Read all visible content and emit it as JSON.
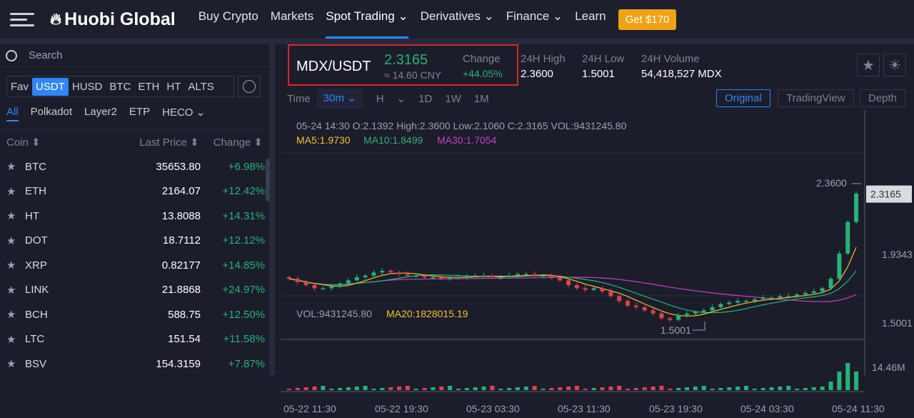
{
  "nav": {
    "logo": "Huobi Global",
    "items": [
      {
        "label": "Buy Crypto"
      },
      {
        "label": "Markets"
      },
      {
        "label": "Spot Trading ⌄",
        "active": true
      },
      {
        "label": "Derivatives ⌄"
      },
      {
        "label": "Finance ⌄"
      },
      {
        "label": "Learn"
      }
    ],
    "cta": "Get $170"
  },
  "sidebar": {
    "search_placeholder": "Search",
    "quote_tabs": [
      "Fav",
      "USDT",
      "HUSD",
      "BTC",
      "ETH",
      "HT",
      "ALTS"
    ],
    "active_quote": "USDT",
    "categories": [
      "All",
      "Polkadot",
      "Layer2",
      "ETP",
      "HECO ⌄"
    ],
    "headers": {
      "coin": "Coin ⬍",
      "price": "Last Price ⬍",
      "change": "Change ⬍"
    },
    "rows": [
      {
        "coin": "BTC",
        "price": "35653.80",
        "change": "+6.98%"
      },
      {
        "coin": "ETH",
        "price": "2164.07",
        "change": "+12.42%"
      },
      {
        "coin": "HT",
        "price": "13.8088",
        "change": "+14.31%"
      },
      {
        "coin": "DOT",
        "price": "18.7112",
        "change": "+12.12%"
      },
      {
        "coin": "XRP",
        "price": "0.82177",
        "change": "+14.85%"
      },
      {
        "coin": "LINK",
        "price": "21.8868",
        "change": "+24.97%"
      },
      {
        "coin": "BCH",
        "price": "588.75",
        "change": "+12.50%"
      },
      {
        "coin": "LTC",
        "price": "151.54",
        "change": "+11.58%"
      },
      {
        "coin": "BSV",
        "price": "154.3159",
        "change": "+7.87%"
      }
    ]
  },
  "ticker": {
    "pair": "MDX/USDT",
    "price": "2.3165",
    "cny": "≈ 14.60 CNY",
    "change_label": "Change",
    "change": "+44.05%",
    "high_label": "24H High",
    "high": "2.3600",
    "low_label": "24H Low",
    "low": "1.5001",
    "vol_label": "24H Volume",
    "vol": "54,418,527 MDX"
  },
  "toolbar": {
    "time": "Time",
    "interval": "30m ⌄",
    "h": "H",
    "h_arrow": "⌄",
    "d": "1D",
    "w": "1W",
    "m": "1M",
    "views": [
      "Original",
      "TradingView",
      "Depth"
    ],
    "active_view": "Original"
  },
  "colors": {
    "up": "#27b277",
    "down": "#e0414e",
    "accent": "#2f86f6",
    "ma5": "#f5c230",
    "ma10": "#2fb37a",
    "ma30": "#c93fc0"
  },
  "chart_data": {
    "type": "candlestick",
    "ohlc_info": "05-24 14:30  O:2.1392  High:2.3600  Low:2.1060  C:2.3165  VOL:9431245.80",
    "ma5": "MA5:1.9730",
    "ma10": "MA10:1.8499",
    "ma30": "MA30:1.7054",
    "vol_info": "VOL:9431245.80",
    "vol_ma": "MA20:1828015.19",
    "price_labels": [
      "2.3165",
      "1.9343",
      "1.5001"
    ],
    "high_mark": "2.3600",
    "low_mark": "1.5001",
    "vol_label": "14.46M",
    "ylim": [
      1.5001,
      2.36
    ],
    "x_labels": [
      "05-22 11:30",
      "05-22 19:30",
      "05-23 03:30",
      "05-23 11:30",
      "05-23 19:30",
      "05-24 03:30",
      "05-24 11:30"
    ],
    "closes": [
      1.78,
      1.76,
      1.74,
      1.72,
      1.72,
      1.73,
      1.75,
      1.77,
      1.79,
      1.8,
      1.82,
      1.83,
      1.82,
      1.81,
      1.8,
      1.8,
      1.79,
      1.79,
      1.78,
      1.79,
      1.79,
      1.8,
      1.8,
      1.8,
      1.79,
      1.79,
      1.8,
      1.81,
      1.81,
      1.8,
      1.8,
      1.79,
      1.77,
      1.74,
      1.72,
      1.71,
      1.72,
      1.7,
      1.67,
      1.64,
      1.61,
      1.6,
      1.58,
      1.56,
      1.53,
      1.52,
      1.55,
      1.56,
      1.57,
      1.58,
      1.6,
      1.62,
      1.63,
      1.64,
      1.64,
      1.65,
      1.66,
      1.66,
      1.67,
      1.67,
      1.68,
      1.69,
      1.7,
      1.72,
      1.78,
      1.94,
      2.14,
      2.32
    ]
  }
}
